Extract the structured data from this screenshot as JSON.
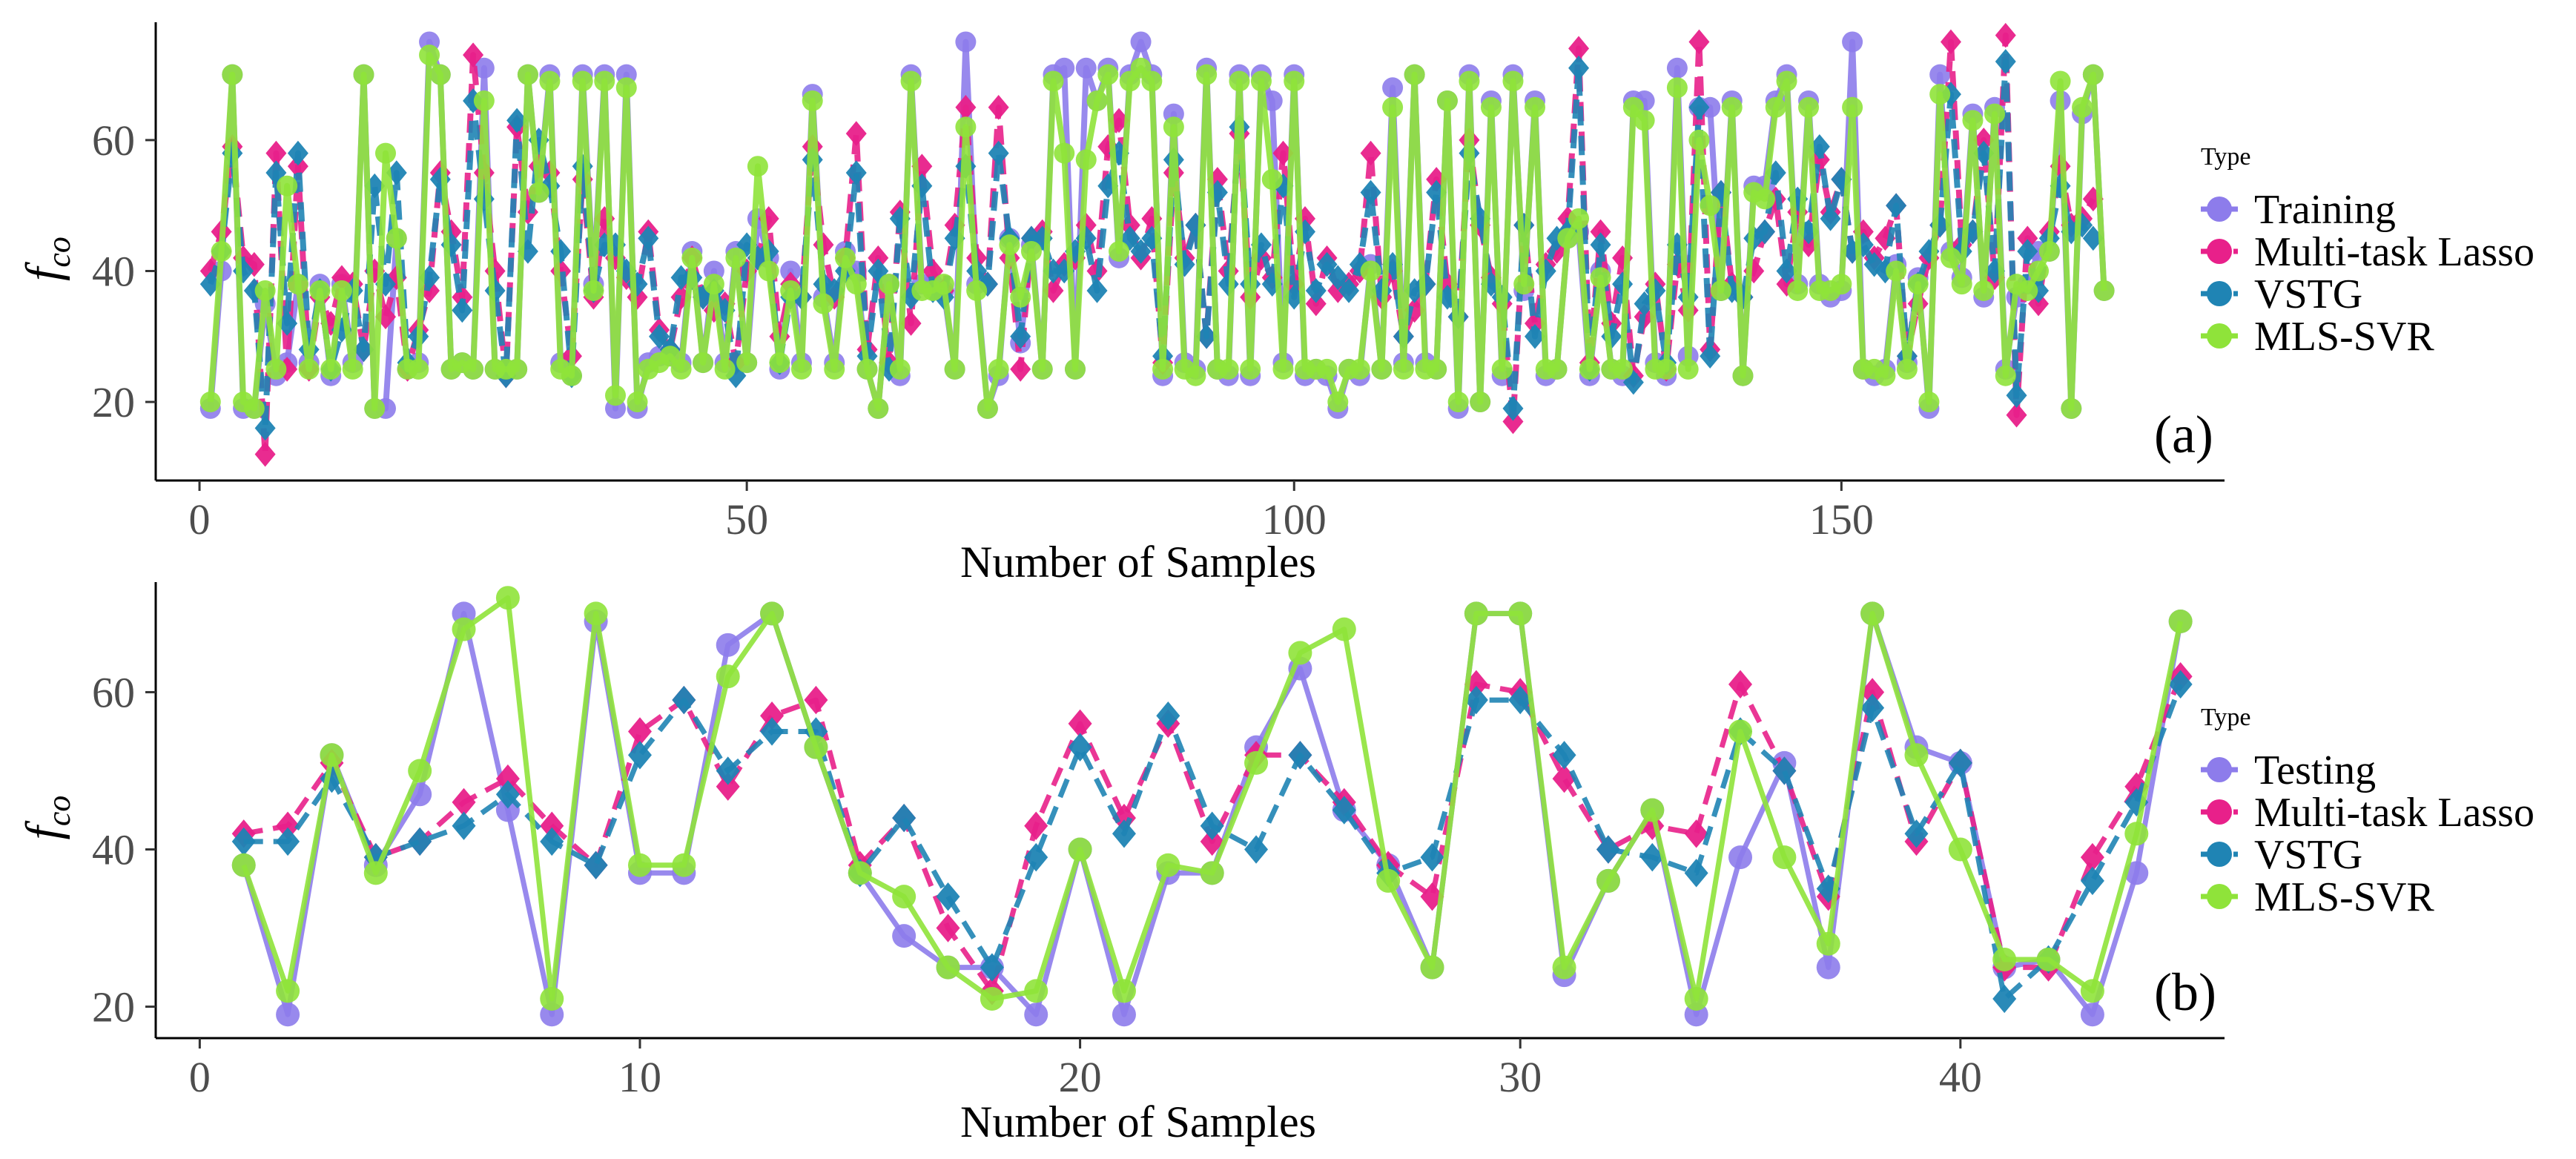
{
  "colors": {
    "Training": "#8D7CEB",
    "Testing": "#8D7CEB",
    "Multi-task Lasso": "#E8208A",
    "VSTG": "#1F84B4",
    "MLS-SVR": "#8FE33A"
  },
  "chart_data": [
    {
      "panel": "(a)",
      "type": "line",
      "ylabel_main": "f",
      "ylabel_sub": "co",
      "xlabel": "Number of Samples",
      "xlim": [
        -4,
        185
      ],
      "ylim": [
        8,
        78
      ],
      "xticks": [
        0,
        50,
        100,
        150
      ],
      "yticks": [
        20,
        40,
        60
      ],
      "legend_title": "Type",
      "legend": [
        "Training",
        "Multi-task Lasso",
        "VSTG",
        "MLS-SVR"
      ],
      "series": [
        {
          "name": "Training",
          "values": [
            19,
            40,
            70,
            19,
            19,
            35,
            24,
            26,
            38,
            26,
            38,
            24,
            38,
            26,
            70,
            19,
            19,
            45,
            25,
            26,
            75,
            70,
            25,
            26,
            25,
            71,
            25,
            25,
            25,
            70,
            52,
            70,
            26,
            24,
            70,
            38,
            70,
            19,
            70,
            19,
            26,
            27,
            27,
            26,
            43,
            26,
            40,
            26,
            43,
            26,
            48,
            42,
            25,
            40,
            26,
            67,
            36,
            26,
            43,
            40,
            25,
            19,
            38,
            24,
            70,
            38,
            38,
            37,
            25,
            75,
            38,
            19,
            24,
            45,
            29,
            44,
            25,
            70,
            71,
            25,
            71,
            66,
            71,
            42,
            70,
            75,
            70,
            24,
            64,
            26,
            25,
            71,
            25,
            24,
            70,
            24,
            70,
            66,
            26,
            70,
            24,
            25,
            24,
            19,
            25,
            24,
            41,
            25,
            68,
            26,
            70,
            26,
            25,
            66,
            19,
            70,
            20,
            66,
            24,
            70,
            37,
            66,
            24,
            25,
            45,
            46,
            24,
            40,
            25,
            24,
            66,
            66,
            26,
            24,
            71,
            27,
            65,
            65,
            37,
            66,
            24,
            53,
            53,
            66,
            70,
            38,
            66,
            38,
            36,
            37,
            75,
            25,
            24,
            25,
            41,
            26,
            39,
            19,
            70,
            43,
            39,
            64,
            36,
            65,
            25,
            36,
            38,
            43,
            43,
            66,
            19,
            64,
            70,
            37
          ],
          "style": "solid",
          "marker": "circle"
        },
        {
          "name": "Multi-task Lasso",
          "values": [
            40,
            46,
            59,
            42,
            41,
            12,
            58,
            25,
            56,
            25,
            36,
            32,
            39,
            38,
            28,
            40,
            33,
            39,
            25,
            31,
            37,
            55,
            46,
            36,
            73,
            55,
            40,
            24,
            62,
            49,
            56,
            55,
            40,
            27,
            54,
            36,
            48,
            42,
            39,
            36,
            46,
            31,
            28,
            36,
            42,
            36,
            34,
            35,
            26,
            40,
            42,
            48,
            30,
            38,
            36,
            59,
            44,
            36,
            42,
            61,
            28,
            42,
            26,
            49,
            32,
            56,
            40,
            37,
            47,
            65,
            42,
            38,
            65,
            42,
            25,
            45,
            46,
            37,
            41,
            42,
            47,
            40,
            59,
            63,
            47,
            42,
            48,
            26,
            55,
            42,
            47,
            30,
            54,
            40,
            61,
            36,
            42,
            39,
            58,
            38,
            48,
            35,
            42,
            37,
            38,
            40,
            58,
            36,
            40,
            30,
            34,
            38,
            54,
            38,
            33,
            60,
            47,
            39,
            35,
            17,
            47,
            32,
            41,
            43,
            48,
            74,
            26,
            46,
            32,
            42,
            24,
            33,
            38,
            25,
            41,
            34,
            75,
            28,
            52,
            38,
            36,
            40,
            46,
            51,
            38,
            49,
            44,
            57,
            49,
            54,
            43,
            46,
            42,
            45,
            50,
            27,
            35,
            42,
            47,
            75,
            44,
            46,
            60,
            39,
            76,
            18,
            45,
            35,
            46,
            56,
            47,
            48,
            51
          ],
          "style": "dashed",
          "marker": "diamond"
        },
        {
          "name": "VSTG",
          "values": [
            38,
            43,
            58,
            40,
            37,
            16,
            55,
            32,
            58,
            28,
            37,
            25,
            31,
            37,
            28,
            53,
            38,
            55,
            26,
            30,
            39,
            54,
            44,
            34,
            66,
            51,
            37,
            24,
            63,
            43,
            60,
            53,
            43,
            24,
            56,
            37,
            44,
            44,
            40,
            38,
            45,
            30,
            28,
            39,
            39,
            36,
            37,
            34,
            24,
            44,
            42,
            43,
            26,
            36,
            36,
            57,
            38,
            37,
            40,
            55,
            27,
            40,
            25,
            48,
            36,
            53,
            37,
            36,
            45,
            56,
            40,
            38,
            58,
            45,
            30,
            45,
            45,
            40,
            40,
            43,
            45,
            37,
            53,
            58,
            45,
            43,
            45,
            27,
            57,
            41,
            47,
            30,
            52,
            38,
            62,
            38,
            44,
            38,
            53,
            36,
            46,
            37,
            41,
            39,
            37,
            41,
            52,
            37,
            41,
            30,
            37,
            38,
            52,
            36,
            33,
            58,
            48,
            38,
            36,
            19,
            47,
            30,
            40,
            45,
            46,
            71,
            25,
            44,
            30,
            38,
            23,
            35,
            37,
            26,
            44,
            36,
            65,
            27,
            52,
            37,
            36,
            45,
            46,
            55,
            40,
            51,
            46,
            59,
            48,
            54,
            43,
            44,
            41,
            40,
            50,
            27,
            38,
            43,
            47,
            67,
            43,
            46,
            58,
            40,
            72,
            21,
            43,
            37,
            45,
            53,
            46,
            47,
            45
          ],
          "style": "dashed",
          "marker": "diamond"
        },
        {
          "name": "MLS-SVR",
          "values": [
            20,
            43,
            70,
            20,
            19,
            37,
            25,
            53,
            38,
            25,
            37,
            25,
            37,
            25,
            70,
            19,
            58,
            45,
            25,
            25,
            73,
            70,
            25,
            26,
            25,
            66,
            25,
            25,
            25,
            70,
            52,
            69,
            25,
            24,
            69,
            37,
            69,
            21,
            68,
            20,
            25,
            26,
            27,
            25,
            42,
            26,
            38,
            25,
            42,
            26,
            56,
            40,
            26,
            37,
            25,
            66,
            35,
            25,
            42,
            38,
            25,
            19,
            38,
            25,
            69,
            37,
            37,
            38,
            25,
            62,
            37,
            19,
            25,
            44,
            36,
            43,
            25,
            69,
            58,
            25,
            57,
            66,
            70,
            43,
            69,
            71,
            69,
            25,
            62,
            25,
            24,
            70,
            25,
            25,
            69,
            25,
            69,
            54,
            25,
            69,
            25,
            25,
            25,
            20,
            25,
            25,
            40,
            25,
            65,
            25,
            70,
            25,
            25,
            66,
            20,
            69,
            20,
            65,
            25,
            69,
            38,
            65,
            25,
            25,
            45,
            48,
            25,
            39,
            25,
            25,
            65,
            63,
            25,
            25,
            68,
            25,
            60,
            50,
            37,
            65,
            24,
            52,
            51,
            65,
            69,
            37,
            65,
            37,
            37,
            38,
            65,
            25,
            25,
            24,
            40,
            25,
            38,
            20,
            67,
            42,
            38,
            63,
            37,
            64,
            24,
            38,
            37,
            40,
            43,
            69,
            19,
            65,
            70,
            37
          ],
          "style": "solid",
          "marker": "circle"
        }
      ]
    },
    {
      "panel": "(b)",
      "type": "line",
      "ylabel_main": "f",
      "ylabel_sub": "co",
      "xlabel": "Number of Samples",
      "xlim": [
        -1,
        46
      ],
      "ylim": [
        16,
        74
      ],
      "xticks": [
        0,
        10,
        20,
        30,
        40
      ],
      "yticks": [
        20,
        40,
        60
      ],
      "legend_title": "Type",
      "legend": [
        "Testing",
        "Multi-task Lasso",
        "VSTG",
        "MLS-SVR"
      ],
      "series": [
        {
          "name": "Testing",
          "values": [
            38,
            19,
            52,
            38,
            47,
            70,
            45,
            19,
            69,
            37,
            37,
            66,
            70,
            53,
            37,
            29,
            25,
            25,
            19,
            40,
            19,
            37,
            37,
            53,
            63,
            45,
            38,
            25,
            70,
            70,
            24,
            36,
            45,
            19,
            39,
            51,
            25,
            70,
            53,
            51,
            25,
            26,
            19,
            37,
            69
          ],
          "style": "solid",
          "marker": "circle"
        },
        {
          "name": "Multi-task Lasso",
          "values": [
            42,
            43,
            51,
            39,
            41,
            46,
            49,
            43,
            38,
            55,
            59,
            48,
            57,
            59,
            38,
            44,
            30,
            22,
            43,
            56,
            44,
            56,
            41,
            52,
            52,
            46,
            38,
            34,
            61,
            60,
            49,
            40,
            43,
            42,
            61,
            50,
            34,
            60,
            41,
            51,
            25,
            25,
            39,
            48,
            62
          ],
          "style": "dashed",
          "marker": "diamond"
        },
        {
          "name": "VSTG",
          "values": [
            41,
            41,
            49,
            39,
            41,
            43,
            47,
            41,
            38,
            52,
            59,
            50,
            55,
            55,
            37,
            44,
            34,
            25,
            39,
            53,
            42,
            57,
            43,
            40,
            52,
            45,
            37,
            39,
            59,
            59,
            52,
            40,
            39,
            37,
            55,
            50,
            35,
            58,
            42,
            51,
            21,
            26,
            36,
            46,
            61
          ],
          "style": "dashed",
          "marker": "diamond"
        },
        {
          "name": "MLS-SVR",
          "values": [
            38,
            22,
            52,
            37,
            50,
            68,
            72,
            21,
            70,
            38,
            38,
            62,
            70,
            53,
            37,
            34,
            25,
            21,
            22,
            40,
            22,
            38,
            37,
            51,
            65,
            68,
            36,
            25,
            70,
            70,
            25,
            36,
            45,
            21,
            55,
            39,
            28,
            70,
            52,
            40,
            26,
            26,
            22,
            42,
            69
          ],
          "style": "solid",
          "marker": "circle"
        }
      ]
    }
  ]
}
